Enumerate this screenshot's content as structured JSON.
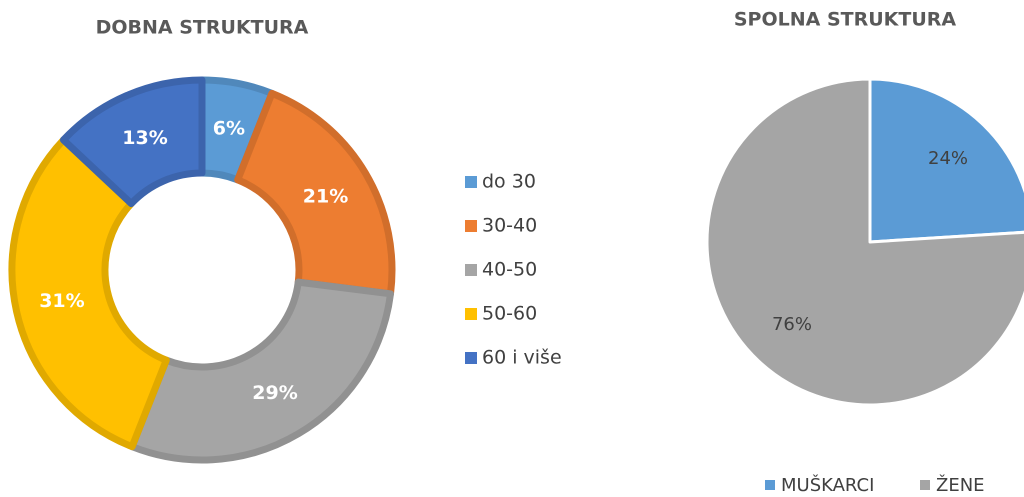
{
  "chart_data": [
    {
      "type": "donut",
      "title": "DOBNA STRUKTURA",
      "categories": [
        "do 30",
        "30-40",
        "40-50",
        "50-60",
        "60 i više"
      ],
      "values": [
        6,
        21,
        29,
        31,
        13
      ],
      "value_labels": [
        "6%",
        "21%",
        "29%",
        "31%",
        "13%"
      ],
      "colors": [
        "#5b9bd5",
        "#ed7d31",
        "#a5a5a5",
        "#ffc000",
        "#4472c4"
      ],
      "legend": "right"
    },
    {
      "type": "pie",
      "title": "SPOLNA STRUKTURA",
      "categories": [
        "MUŠKARCI",
        "ŽENE"
      ],
      "values": [
        24,
        76
      ],
      "value_labels": [
        "24%",
        "76%"
      ],
      "colors": [
        "#5b9bd5",
        "#a5a5a5"
      ],
      "legend": "bottom"
    }
  ]
}
